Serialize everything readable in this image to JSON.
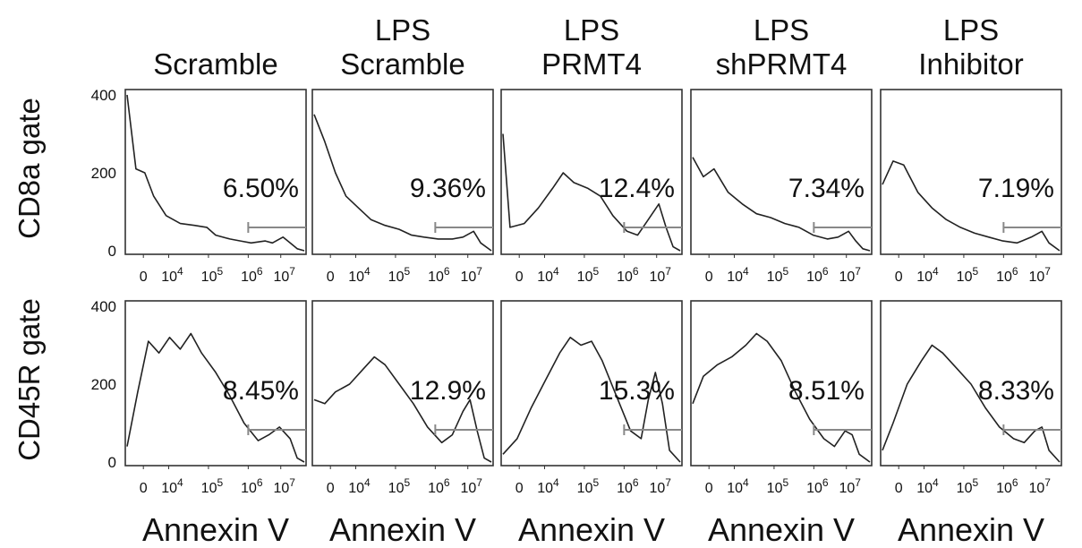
{
  "row_labels": [
    "CD8a gate",
    "CD45R gate"
  ],
  "column_titles": [
    [
      "Scramble"
    ],
    [
      "LPS",
      "Scramble"
    ],
    [
      "LPS",
      "PRMT4"
    ],
    [
      "LPS",
      "shPRMT4"
    ],
    [
      "LPS",
      "Inhibitor"
    ]
  ],
  "y_ticks": [
    "400",
    "200",
    "0"
  ],
  "x_ticks": [
    "0",
    "10^4",
    "10^5",
    "10^6",
    "10^7"
  ],
  "x_axis_label": "Annexin V",
  "chart_data": {
    "type": "histogram-grid",
    "x_scale": "log",
    "x_tick_values": [
      0,
      10000,
      100000,
      1000000,
      10000000
    ],
    "ylim": [
      0,
      400
    ],
    "y_tick_values": [
      400,
      200,
      0
    ],
    "gate_start_tick": "10^6",
    "panels": [
      {
        "row": 0,
        "col": 0,
        "percent": "6.50%",
        "curve": [
          [
            0,
            420
          ],
          [
            0.05,
            210
          ],
          [
            0.1,
            200
          ],
          [
            0.15,
            140
          ],
          [
            0.22,
            90
          ],
          [
            0.3,
            70
          ],
          [
            0.38,
            65
          ],
          [
            0.45,
            60
          ],
          [
            0.5,
            40
          ],
          [
            0.58,
            30
          ],
          [
            0.64,
            25
          ],
          [
            0.7,
            20
          ],
          [
            0.78,
            25
          ],
          [
            0.82,
            20
          ],
          [
            0.88,
            35
          ],
          [
            0.92,
            20
          ],
          [
            0.96,
            5
          ],
          [
            1,
            0
          ]
        ]
      },
      {
        "row": 0,
        "col": 1,
        "percent": "9.36%",
        "curve": [
          [
            0,
            350
          ],
          [
            0.06,
            280
          ],
          [
            0.12,
            200
          ],
          [
            0.18,
            140
          ],
          [
            0.25,
            110
          ],
          [
            0.32,
            80
          ],
          [
            0.4,
            65
          ],
          [
            0.48,
            55
          ],
          [
            0.55,
            40
          ],
          [
            0.62,
            35
          ],
          [
            0.7,
            30
          ],
          [
            0.78,
            30
          ],
          [
            0.84,
            35
          ],
          [
            0.9,
            50
          ],
          [
            0.94,
            20
          ],
          [
            1,
            0
          ]
        ]
      },
      {
        "row": 0,
        "col": 2,
        "percent": "12.4%",
        "curve": [
          [
            0,
            300
          ],
          [
            0.04,
            60
          ],
          [
            0.12,
            70
          ],
          [
            0.2,
            110
          ],
          [
            0.28,
            160
          ],
          [
            0.34,
            200
          ],
          [
            0.4,
            175
          ],
          [
            0.48,
            160
          ],
          [
            0.55,
            140
          ],
          [
            0.62,
            90
          ],
          [
            0.7,
            50
          ],
          [
            0.76,
            40
          ],
          [
            0.82,
            80
          ],
          [
            0.88,
            120
          ],
          [
            0.92,
            60
          ],
          [
            0.96,
            10
          ],
          [
            1,
            0
          ]
        ]
      },
      {
        "row": 0,
        "col": 3,
        "percent": "7.34%",
        "curve": [
          [
            0,
            240
          ],
          [
            0.06,
            190
          ],
          [
            0.12,
            210
          ],
          [
            0.2,
            150
          ],
          [
            0.28,
            120
          ],
          [
            0.36,
            95
          ],
          [
            0.44,
            85
          ],
          [
            0.52,
            70
          ],
          [
            0.6,
            60
          ],
          [
            0.68,
            40
          ],
          [
            0.76,
            30
          ],
          [
            0.82,
            35
          ],
          [
            0.88,
            50
          ],
          [
            0.92,
            25
          ],
          [
            0.96,
            5
          ],
          [
            1,
            0
          ]
        ]
      },
      {
        "row": 0,
        "col": 4,
        "percent": "7.19%",
        "curve": [
          [
            0,
            170
          ],
          [
            0.06,
            230
          ],
          [
            0.12,
            220
          ],
          [
            0.2,
            150
          ],
          [
            0.28,
            110
          ],
          [
            0.36,
            80
          ],
          [
            0.44,
            60
          ],
          [
            0.52,
            45
          ],
          [
            0.6,
            35
          ],
          [
            0.68,
            25
          ],
          [
            0.76,
            20
          ],
          [
            0.84,
            35
          ],
          [
            0.9,
            50
          ],
          [
            0.94,
            20
          ],
          [
            1,
            0
          ]
        ]
      },
      {
        "row": 1,
        "col": 0,
        "percent": "8.45%",
        "curve": [
          [
            0,
            40
          ],
          [
            0.06,
            180
          ],
          [
            0.12,
            310
          ],
          [
            0.18,
            280
          ],
          [
            0.24,
            320
          ],
          [
            0.3,
            290
          ],
          [
            0.36,
            330
          ],
          [
            0.42,
            280
          ],
          [
            0.5,
            230
          ],
          [
            0.58,
            170
          ],
          [
            0.66,
            100
          ],
          [
            0.74,
            55
          ],
          [
            0.8,
            70
          ],
          [
            0.86,
            90
          ],
          [
            0.92,
            60
          ],
          [
            0.96,
            10
          ],
          [
            1,
            0
          ]
        ]
      },
      {
        "row": 1,
        "col": 1,
        "percent": "12.9%",
        "curve": [
          [
            0,
            160
          ],
          [
            0.06,
            150
          ],
          [
            0.12,
            180
          ],
          [
            0.2,
            200
          ],
          [
            0.28,
            240
          ],
          [
            0.34,
            270
          ],
          [
            0.4,
            250
          ],
          [
            0.48,
            200
          ],
          [
            0.56,
            150
          ],
          [
            0.64,
            90
          ],
          [
            0.72,
            50
          ],
          [
            0.78,
            70
          ],
          [
            0.84,
            130
          ],
          [
            0.88,
            160
          ],
          [
            0.92,
            80
          ],
          [
            0.96,
            10
          ],
          [
            1,
            0
          ]
        ]
      },
      {
        "row": 1,
        "col": 2,
        "percent": "15.3%",
        "curve": [
          [
            0,
            20
          ],
          [
            0.08,
            60
          ],
          [
            0.16,
            140
          ],
          [
            0.24,
            210
          ],
          [
            0.32,
            280
          ],
          [
            0.38,
            320
          ],
          [
            0.44,
            300
          ],
          [
            0.5,
            310
          ],
          [
            0.56,
            260
          ],
          [
            0.64,
            170
          ],
          [
            0.72,
            80
          ],
          [
            0.78,
            60
          ],
          [
            0.82,
            160
          ],
          [
            0.86,
            230
          ],
          [
            0.9,
            150
          ],
          [
            0.94,
            30
          ],
          [
            1,
            0
          ]
        ]
      },
      {
        "row": 1,
        "col": 3,
        "percent": "8.51%",
        "curve": [
          [
            0,
            150
          ],
          [
            0.06,
            220
          ],
          [
            0.14,
            250
          ],
          [
            0.22,
            270
          ],
          [
            0.3,
            300
          ],
          [
            0.36,
            330
          ],
          [
            0.42,
            310
          ],
          [
            0.5,
            260
          ],
          [
            0.58,
            180
          ],
          [
            0.66,
            110
          ],
          [
            0.74,
            60
          ],
          [
            0.8,
            40
          ],
          [
            0.86,
            80
          ],
          [
            0.9,
            70
          ],
          [
            0.94,
            20
          ],
          [
            1,
            0
          ]
        ]
      },
      {
        "row": 1,
        "col": 4,
        "percent": "8.33%",
        "curve": [
          [
            0,
            30
          ],
          [
            0.06,
            100
          ],
          [
            0.14,
            200
          ],
          [
            0.22,
            260
          ],
          [
            0.28,
            300
          ],
          [
            0.34,
            280
          ],
          [
            0.42,
            240
          ],
          [
            0.5,
            200
          ],
          [
            0.58,
            140
          ],
          [
            0.66,
            90
          ],
          [
            0.74,
            60
          ],
          [
            0.8,
            50
          ],
          [
            0.86,
            80
          ],
          [
            0.9,
            90
          ],
          [
            0.94,
            30
          ],
          [
            1,
            0
          ]
        ]
      }
    ]
  }
}
